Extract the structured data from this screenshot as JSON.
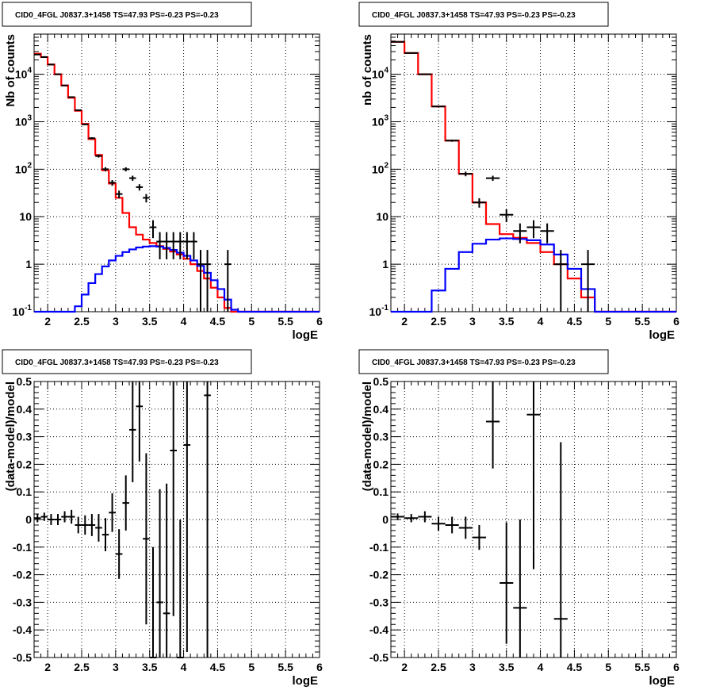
{
  "colors": {
    "data": "#000000",
    "total_model": "#ff0000",
    "source_model": "#0000ff",
    "grid": "#000000"
  },
  "chart_data": [
    {
      "type": "line",
      "title": "CID0_4FGL J0837.3+1458 TS=47.93 PS=-0.23 PS=-0.23",
      "xlabel": "logE",
      "ylabel": "Nb of counts",
      "scale": "log-y",
      "xlim": [
        1.8,
        6.0
      ],
      "ylim": [
        0.1,
        70000
      ],
      "grid": true,
      "x_ticks": [
        "2",
        "2.5",
        "3",
        "3.5",
        "4",
        "4.5",
        "5",
        "5.5",
        "6"
      ],
      "y_ticks": [
        "10^{-1}",
        "1",
        "10",
        "10^{2}",
        "10^{3}",
        "10^{4}"
      ],
      "bin_edges": [
        1.8,
        1.9,
        2.0,
        2.1,
        2.2,
        2.3,
        2.4,
        2.5,
        2.6,
        2.7,
        2.8,
        2.9,
        3.0,
        3.1,
        3.2,
        3.3,
        3.4,
        3.5,
        3.6,
        3.7,
        3.8,
        3.9,
        4.0,
        4.1,
        4.2,
        4.3,
        4.4,
        4.5,
        4.6,
        4.7,
        4.8,
        4.9,
        5.0,
        5.1,
        5.2,
        5.3,
        5.4,
        5.5,
        5.6,
        5.7,
        5.8,
        5.9,
        6.0
      ],
      "series": [
        {
          "role": "total_model",
          "values": [
            27000,
            23000,
            16000,
            10000,
            5800,
            3200,
            1700,
            900,
            430,
            200,
            95,
            50,
            25,
            12,
            6,
            4.2,
            3.3,
            2.8,
            2.4,
            2.1,
            1.85,
            1.6,
            1.3,
            1.0,
            0.72,
            0.5,
            0.32,
            0.2,
            0.12,
            0.1,
            0.1,
            0.1,
            0.1,
            0.1,
            0.1,
            0.1,
            0.1,
            0.1,
            0.1,
            0.1,
            0.1,
            0.1
          ]
        },
        {
          "role": "source_model",
          "values": [
            0.1,
            0.1,
            0.1,
            0.1,
            0.1,
            0.1,
            0.13,
            0.23,
            0.4,
            0.62,
            0.9,
            1.2,
            1.5,
            1.8,
            2.05,
            2.25,
            2.35,
            2.4,
            2.35,
            2.2,
            2.0,
            1.75,
            1.5,
            1.2,
            0.92,
            0.66,
            0.46,
            0.3,
            0.18,
            0.11,
            0.1,
            0.1,
            0.1,
            0.1,
            0.1,
            0.1,
            0.1,
            0.1,
            0.1,
            0.1,
            0.1,
            0.1
          ]
        },
        {
          "role": "data",
          "points": [
            {
              "x": 1.85,
              "y": 26000
            },
            {
              "x": 1.95,
              "y": 23000
            },
            {
              "x": 2.05,
              "y": 16000
            },
            {
              "x": 2.15,
              "y": 10000
            },
            {
              "x": 2.25,
              "y": 5800
            },
            {
              "x": 2.35,
              "y": 3300
            },
            {
              "x": 2.45,
              "y": 1750
            },
            {
              "x": 2.55,
              "y": 880
            },
            {
              "x": 2.65,
              "y": 450
            },
            {
              "x": 2.75,
              "y": 190
            },
            {
              "x": 2.85,
              "y": 100
            },
            {
              "x": 2.95,
              "y": 52
            },
            {
              "x": 3.05,
              "y": 30
            },
            {
              "x": 3.15,
              "y": 100
            },
            {
              "x": 3.25,
              "y": 65
            },
            {
              "x": 3.35,
              "y": 42
            },
            {
              "x": 3.45,
              "y": 25
            },
            {
              "x": 3.55,
              "y": 6
            },
            {
              "x": 3.65,
              "y": 3
            },
            {
              "x": 3.75,
              "y": 3
            },
            {
              "x": 3.85,
              "y": 3
            },
            {
              "x": 3.95,
              "y": 3
            },
            {
              "x": 4.05,
              "y": 3
            },
            {
              "x": 4.15,
              "y": 3
            },
            {
              "x": 4.25,
              "y": 1
            },
            {
              "x": 4.35,
              "y": 1
            },
            {
              "x": 4.65,
              "y": 1
            }
          ]
        }
      ]
    },
    {
      "type": "line",
      "title": "CID0_4FGL J0837.3+1458 TS=47.93 PS=-0.23 PS=-0.23",
      "xlabel": "logE",
      "ylabel": "nb of counts",
      "scale": "log-y",
      "xlim": [
        1.8,
        6.0
      ],
      "ylim": [
        0.1,
        70000
      ],
      "grid": true,
      "x_ticks": [
        "2",
        "2.5",
        "3",
        "3.5",
        "4",
        "4.5",
        "5",
        "5.5",
        "6"
      ],
      "y_ticks": [
        "10^{-1}",
        "1",
        "10",
        "10^{2}",
        "10^{3}",
        "10^{4}"
      ],
      "bin_edges": [
        1.8,
        2.0,
        2.2,
        2.4,
        2.6,
        2.8,
        3.0,
        3.2,
        3.4,
        3.6,
        3.8,
        4.0,
        4.2,
        4.4,
        4.6,
        4.8,
        5.0,
        5.2,
        5.4,
        5.6,
        5.8,
        6.0
      ],
      "series": [
        {
          "role": "total_model",
          "values": [
            48000,
            28000,
            10000,
            2100,
            400,
            80,
            20,
            7,
            4.3,
            3.6,
            2.8,
            1.8,
            1.0,
            0.5,
            0.2,
            0.1,
            0.1,
            0.1,
            0.1,
            0.1,
            0.1
          ]
        },
        {
          "role": "source_model",
          "values": [
            0.1,
            0.1,
            0.1,
            0.28,
            0.8,
            1.8,
            2.7,
            3.3,
            3.5,
            3.4,
            3.2,
            2.6,
            1.6,
            0.8,
            0.3,
            0.1,
            0.1,
            0.1,
            0.1,
            0.1,
            0.1
          ]
        },
        {
          "role": "data",
          "points": [
            {
              "x": 1.9,
              "y": 48000
            },
            {
              "x": 2.1,
              "y": 28000
            },
            {
              "x": 2.3,
              "y": 10000
            },
            {
              "x": 2.5,
              "y": 2100
            },
            {
              "x": 2.7,
              "y": 400
            },
            {
              "x": 2.9,
              "y": 80
            },
            {
              "x": 3.1,
              "y": 20
            },
            {
              "x": 3.3,
              "y": 65
            },
            {
              "x": 3.5,
              "y": 11
            },
            {
              "x": 3.7,
              "y": 5
            },
            {
              "x": 3.9,
              "y": 6
            },
            {
              "x": 4.1,
              "y": 5
            },
            {
              "x": 4.3,
              "y": 1
            },
            {
              "x": 4.7,
              "y": 1
            }
          ]
        }
      ]
    },
    {
      "type": "scatter",
      "title": "CID0_4FGL J0837.3+1458 TS=47.93 PS=-0.23 PS=-0.23",
      "xlabel": "logE",
      "ylabel": "(data-model)/model",
      "xlim": [
        1.8,
        6.0
      ],
      "ylim": [
        -0.5,
        0.5
      ],
      "grid": true,
      "x_ticks": [
        "2",
        "2.5",
        "3",
        "3.5",
        "4",
        "4.5",
        "5",
        "5.5",
        "6"
      ],
      "y_ticks": [
        "-0.5",
        "-0.4",
        "-0.3",
        "-0.2",
        "-0.1",
        "0",
        "0.1",
        "0.2",
        "0.3",
        "0.4",
        "0.5"
      ],
      "series": [
        {
          "role": "data",
          "points": [
            {
              "x": 1.85,
              "y": 0.005,
              "err": 0.015
            },
            {
              "x": 1.95,
              "y": 0.01,
              "err": 0.015
            },
            {
              "x": 2.05,
              "y": 0.0,
              "err": 0.02
            },
            {
              "x": 2.15,
              "y": 0.0,
              "err": 0.02
            },
            {
              "x": 2.25,
              "y": 0.01,
              "err": 0.02
            },
            {
              "x": 2.35,
              "y": 0.01,
              "err": 0.025
            },
            {
              "x": 2.45,
              "y": -0.02,
              "err": 0.03
            },
            {
              "x": 2.55,
              "y": -0.02,
              "err": 0.035
            },
            {
              "x": 2.65,
              "y": -0.02,
              "err": 0.04
            },
            {
              "x": 2.75,
              "y": -0.03,
              "err": 0.05
            },
            {
              "x": 2.85,
              "y": -0.055,
              "err": 0.06
            },
            {
              "x": 2.95,
              "y": 0.025,
              "err": 0.07
            },
            {
              "x": 3.05,
              "y": -0.125,
              "err": 0.09
            },
            {
              "x": 3.15,
              "y": 0.06,
              "err": 0.1
            },
            {
              "x": 3.25,
              "y": 0.325,
              "err": 0.19
            },
            {
              "x": 3.35,
              "y": 0.41,
              "err": 0.2
            },
            {
              "x": 3.45,
              "y": -0.07,
              "err": 0.31
            },
            {
              "x": 3.55,
              "y": -0.5,
              "err": 0.4
            },
            {
              "x": 3.65,
              "y": -0.3,
              "err": 0.41
            },
            {
              "x": 3.75,
              "y": -0.34,
              "err": 0.47
            },
            {
              "x": 3.85,
              "y": 0.25,
              "err": 0.6
            },
            {
              "x": 3.95,
              "y": -0.5,
              "err": 0.5
            },
            {
              "x": 4.05,
              "y": 0.27,
              "err": 0.75
            },
            {
              "x": 4.35,
              "y": 0.45,
              "err": 1.0
            }
          ]
        }
      ]
    },
    {
      "type": "scatter",
      "title": "CID0_4FGL J0837.3+1458 TS=47.93 PS=-0.23 PS=-0.23",
      "xlabel": "logE",
      "ylabel": "(data-model)/model",
      "xlim": [
        1.8,
        6.0
      ],
      "ylim": [
        -0.5,
        0.5
      ],
      "grid": true,
      "x_ticks": [
        "2",
        "2.5",
        "3",
        "3.5",
        "4",
        "4.5",
        "5",
        "5.5",
        "6"
      ],
      "y_ticks": [
        "-0.5",
        "-0.4",
        "-0.3",
        "-0.2",
        "-0.1",
        "0",
        "0.1",
        "0.2",
        "0.3",
        "0.4",
        "0.5"
      ],
      "series": [
        {
          "role": "data",
          "points": [
            {
              "x": 1.9,
              "y": 0.01,
              "err": 0.012
            },
            {
              "x": 2.1,
              "y": 0.005,
              "err": 0.015
            },
            {
              "x": 2.3,
              "y": 0.01,
              "err": 0.02
            },
            {
              "x": 2.5,
              "y": -0.015,
              "err": 0.025
            },
            {
              "x": 2.7,
              "y": -0.02,
              "err": 0.03
            },
            {
              "x": 2.9,
              "y": -0.03,
              "err": 0.04
            },
            {
              "x": 3.1,
              "y": -0.065,
              "err": 0.045
            },
            {
              "x": 3.3,
              "y": 0.355,
              "err": 0.17
            },
            {
              "x": 3.5,
              "y": -0.23,
              "err": 0.22
            },
            {
              "x": 3.7,
              "y": -0.32,
              "err": 0.32
            },
            {
              "x": 3.9,
              "y": 0.38,
              "err": 0.56
            },
            {
              "x": 4.3,
              "y": -0.36,
              "err": 0.64
            }
          ]
        }
      ]
    }
  ]
}
